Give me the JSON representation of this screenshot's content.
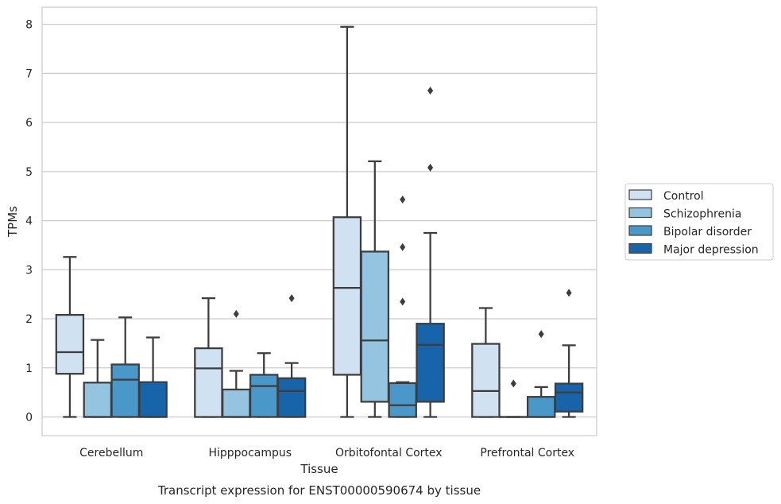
{
  "chart_data": {
    "type": "box",
    "title": "",
    "caption": "Transcript expression for ENST00000590674 by tissue",
    "xlabel": "Tissue",
    "ylabel": "TPMs",
    "ylim": [
      -0.38,
      8.35
    ],
    "yticks": [
      0,
      1,
      2,
      3,
      4,
      5,
      6,
      7,
      8
    ],
    "grid": "horizontal",
    "legend_position": "outside-right",
    "categories": [
      "Cerebellum",
      "Hipppocampus",
      "Orbitofontal Cortex",
      "Prefrontal Cortex"
    ],
    "series": [
      {
        "name": "Control",
        "color": "#d0e1f2",
        "boxes": [
          {
            "whislo": 0,
            "q1": 0.88,
            "med": 1.32,
            "q3": 2.08,
            "whishi": 3.26,
            "fliers": []
          },
          {
            "whislo": 0,
            "q1": 0,
            "med": 0.99,
            "q3": 1.4,
            "whishi": 2.42,
            "fliers": []
          },
          {
            "whislo": 0,
            "q1": 0.86,
            "med": 2.63,
            "q3": 4.07,
            "whishi": 7.95,
            "fliers": []
          },
          {
            "whislo": 0,
            "q1": 0,
            "med": 0.53,
            "q3": 1.49,
            "whishi": 2.22,
            "fliers": []
          }
        ]
      },
      {
        "name": "Schizophrenia",
        "color": "#94c4df",
        "boxes": [
          {
            "whislo": 0,
            "q1": 0,
            "med": 0,
            "q3": 0.7,
            "whishi": 1.57,
            "fliers": []
          },
          {
            "whislo": 0,
            "q1": 0,
            "med": 0,
            "q3": 0.56,
            "whishi": 0.94,
            "fliers": [
              2.1
            ]
          },
          {
            "whislo": 0,
            "q1": 0.31,
            "med": 1.56,
            "q3": 3.37,
            "whishi": 5.21,
            "fliers": []
          },
          {
            "whislo": 0,
            "q1": 0,
            "med": 0,
            "q3": 0,
            "whishi": 0,
            "fliers": [
              0.68
            ]
          }
        ]
      },
      {
        "name": "Bipolar disorder",
        "color": "#4a98c9",
        "boxes": [
          {
            "whislo": 0,
            "q1": 0,
            "med": 0.76,
            "q3": 1.07,
            "whishi": 2.03,
            "fliers": []
          },
          {
            "whislo": 0,
            "q1": 0,
            "med": 0.63,
            "q3": 0.86,
            "whishi": 1.3,
            "fliers": []
          },
          {
            "whislo": 0,
            "q1": 0,
            "med": 0.24,
            "q3": 0.69,
            "whishi": 0.71,
            "fliers": [
              2.35,
              3.46,
              4.43
            ]
          },
          {
            "whislo": 0,
            "q1": 0,
            "med": 0,
            "q3": 0.41,
            "whishi": 0.61,
            "fliers": [
              1.69
            ]
          }
        ]
      },
      {
        "name": "Major depression",
        "color": "#1764ab",
        "boxes": [
          {
            "whislo": 0,
            "q1": 0,
            "med": 0,
            "q3": 0.71,
            "whishi": 1.62,
            "fliers": []
          },
          {
            "whislo": 0,
            "q1": 0,
            "med": 0.53,
            "q3": 0.79,
            "whishi": 1.1,
            "fliers": [
              2.42
            ]
          },
          {
            "whislo": 0,
            "q1": 0.31,
            "med": 1.47,
            "q3": 1.9,
            "whishi": 3.75,
            "fliers": [
              5.08,
              6.65
            ]
          },
          {
            "whislo": 0,
            "q1": 0.11,
            "med": 0.5,
            "q3": 0.68,
            "whishi": 1.46,
            "fliers": [
              2.53
            ]
          }
        ]
      }
    ]
  }
}
